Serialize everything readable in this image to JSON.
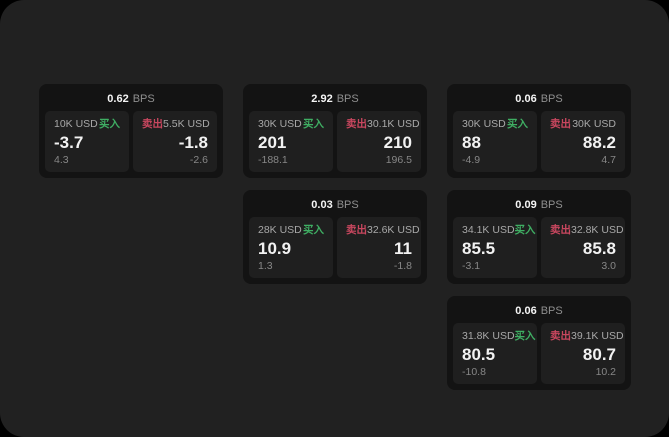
{
  "labels": {
    "bps_unit": "BPS",
    "buy": "买入",
    "sell": "卖出"
  },
  "colors": {
    "buy_green": "#3fae63",
    "sell_red": "#c9475f",
    "page_background": "#212121",
    "card_background": "#131313",
    "panel_background": "#1f1f1f"
  },
  "cards": [
    {
      "bps": "0.62",
      "buy": {
        "amount": "10K USD",
        "value": "-3.7",
        "sub": "4.3"
      },
      "sell": {
        "amount": "5.5K USD",
        "value": "-1.8",
        "sub": "-2.6"
      }
    },
    {
      "bps": "2.92",
      "buy": {
        "amount": "30K USD",
        "value": "201",
        "sub": "-188.1"
      },
      "sell": {
        "amount": "30.1K USD",
        "value": "210",
        "sub": "196.5"
      }
    },
    {
      "bps": "0.06",
      "buy": {
        "amount": "30K USD",
        "value": "88",
        "sub": "-4.9"
      },
      "sell": {
        "amount": "30K USD",
        "value": "88.2",
        "sub": "4.7"
      }
    },
    {
      "bps": "0.03",
      "buy": {
        "amount": "28K USD",
        "value": "10.9",
        "sub": "1.3"
      },
      "sell": {
        "amount": "32.6K USD",
        "value": "11",
        "sub": "-1.8"
      }
    },
    {
      "bps": "0.09",
      "buy": {
        "amount": "34.1K USD",
        "value": "85.5",
        "sub": "-3.1"
      },
      "sell": {
        "amount": "32.8K USD",
        "value": "85.8",
        "sub": "3.0"
      }
    },
    {
      "bps": "0.06",
      "buy": {
        "amount": "31.8K USD",
        "value": "80.5",
        "sub": "-10.8"
      },
      "sell": {
        "amount": "39.1K USD",
        "value": "80.7",
        "sub": "10.2"
      }
    }
  ]
}
